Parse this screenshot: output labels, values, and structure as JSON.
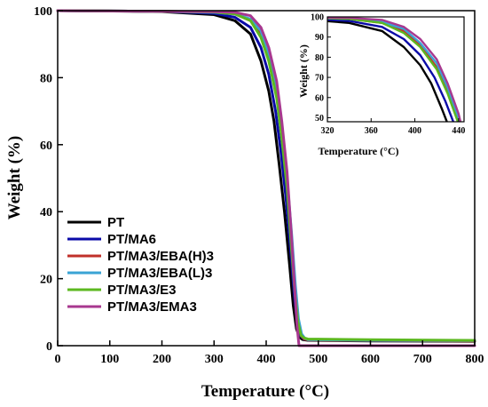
{
  "chart_data": {
    "type": "line",
    "xlabel": "Temperature (°C)",
    "ylabel": "Weight (%)",
    "xlim": [
      0,
      800
    ],
    "ylim": [
      0,
      100
    ],
    "xticks": [
      "0",
      "100",
      "200",
      "300",
      "400",
      "500",
      "600",
      "700",
      "800"
    ],
    "yticks": [
      "0",
      "20",
      "40",
      "60",
      "80",
      "100"
    ],
    "legend_position": "bottom-left",
    "series": [
      {
        "name": "PT",
        "color": "#000000",
        "x": [
          0,
          100,
          200,
          300,
          340,
          370,
          390,
          405,
          415,
          425,
          435,
          445,
          452,
          458,
          464,
          470,
          480,
          600,
          800
        ],
        "y": [
          100,
          99.9,
          99.7,
          98.8,
          97,
          93,
          85,
          76,
          67,
          54,
          40,
          24,
          12,
          5,
          2.5,
          1.8,
          1.6,
          1.4,
          1.3
        ]
      },
      {
        "name": "PT/MA6",
        "color": "#0a0aa8",
        "x": [
          0,
          100,
          200,
          300,
          340,
          370,
          390,
          405,
          418,
          428,
          438,
          447,
          454,
          460,
          466,
          472,
          480,
          600,
          800
        ],
        "y": [
          100,
          99.9,
          99.8,
          99.2,
          98,
          95,
          89,
          81,
          70,
          58,
          44,
          28,
          15,
          6,
          3,
          2,
          1.8,
          1.6,
          1.5
        ]
      },
      {
        "name": "PT/MA3/EBA(H)3",
        "color": "#c0302a",
        "x": [
          0,
          100,
          200,
          300,
          340,
          370,
          390,
          405,
          420,
          430,
          440,
          448,
          455,
          461,
          467,
          473,
          480,
          600,
          800
        ],
        "y": [
          100,
          99.9,
          99.8,
          99.6,
          99,
          97,
          93,
          86,
          75,
          63,
          48,
          31,
          17,
          7,
          3,
          2,
          1.7,
          1.5,
          1.4
        ]
      },
      {
        "name": "PT/MA3/EBA(L)3",
        "color": "#3aa3d4",
        "x": [
          0,
          100,
          200,
          300,
          340,
          370,
          390,
          405,
          420,
          430,
          440,
          449,
          456,
          462,
          468,
          474,
          480,
          600,
          800
        ],
        "y": [
          100,
          99.9,
          99.8,
          99.5,
          99,
          97.5,
          94,
          87,
          77,
          65,
          50,
          33,
          18,
          8,
          3.5,
          2.2,
          1.8,
          1.6,
          1.5
        ]
      },
      {
        "name": "PT/MA3/E3",
        "color": "#5cb820",
        "x": [
          0,
          100,
          200,
          300,
          340,
          370,
          390,
          405,
          420,
          430,
          440,
          448,
          455,
          461,
          467,
          473,
          480,
          600,
          800
        ],
        "y": [
          100,
          99.9,
          99.8,
          99.6,
          99,
          97,
          92,
          85,
          74,
          62,
          47,
          30,
          16,
          7,
          3,
          2.3,
          2,
          1.8,
          1.6
        ]
      },
      {
        "name": "PT/MA3/EMA3",
        "color": "#a8388f",
        "x": [
          0,
          100,
          200,
          300,
          340,
          370,
          390,
          405,
          420,
          430,
          440,
          448,
          454,
          459,
          463,
          470,
          480,
          600,
          800
        ],
        "y": [
          100,
          99.9,
          99.8,
          99.7,
          99.5,
          98.5,
          95,
          89,
          79,
          67,
          52,
          34,
          19,
          6,
          0,
          0,
          0,
          0,
          0
        ]
      }
    ],
    "inset": {
      "xlabel": "Temperature (°C)",
      "ylabel": "Weight (%)",
      "xlim": [
        320,
        445
      ],
      "ylim": [
        48,
        100
      ],
      "xticks": [
        "320",
        "360",
        "400",
        "440"
      ],
      "yticks": [
        "50",
        "60",
        "70",
        "80",
        "90",
        "100"
      ]
    }
  }
}
